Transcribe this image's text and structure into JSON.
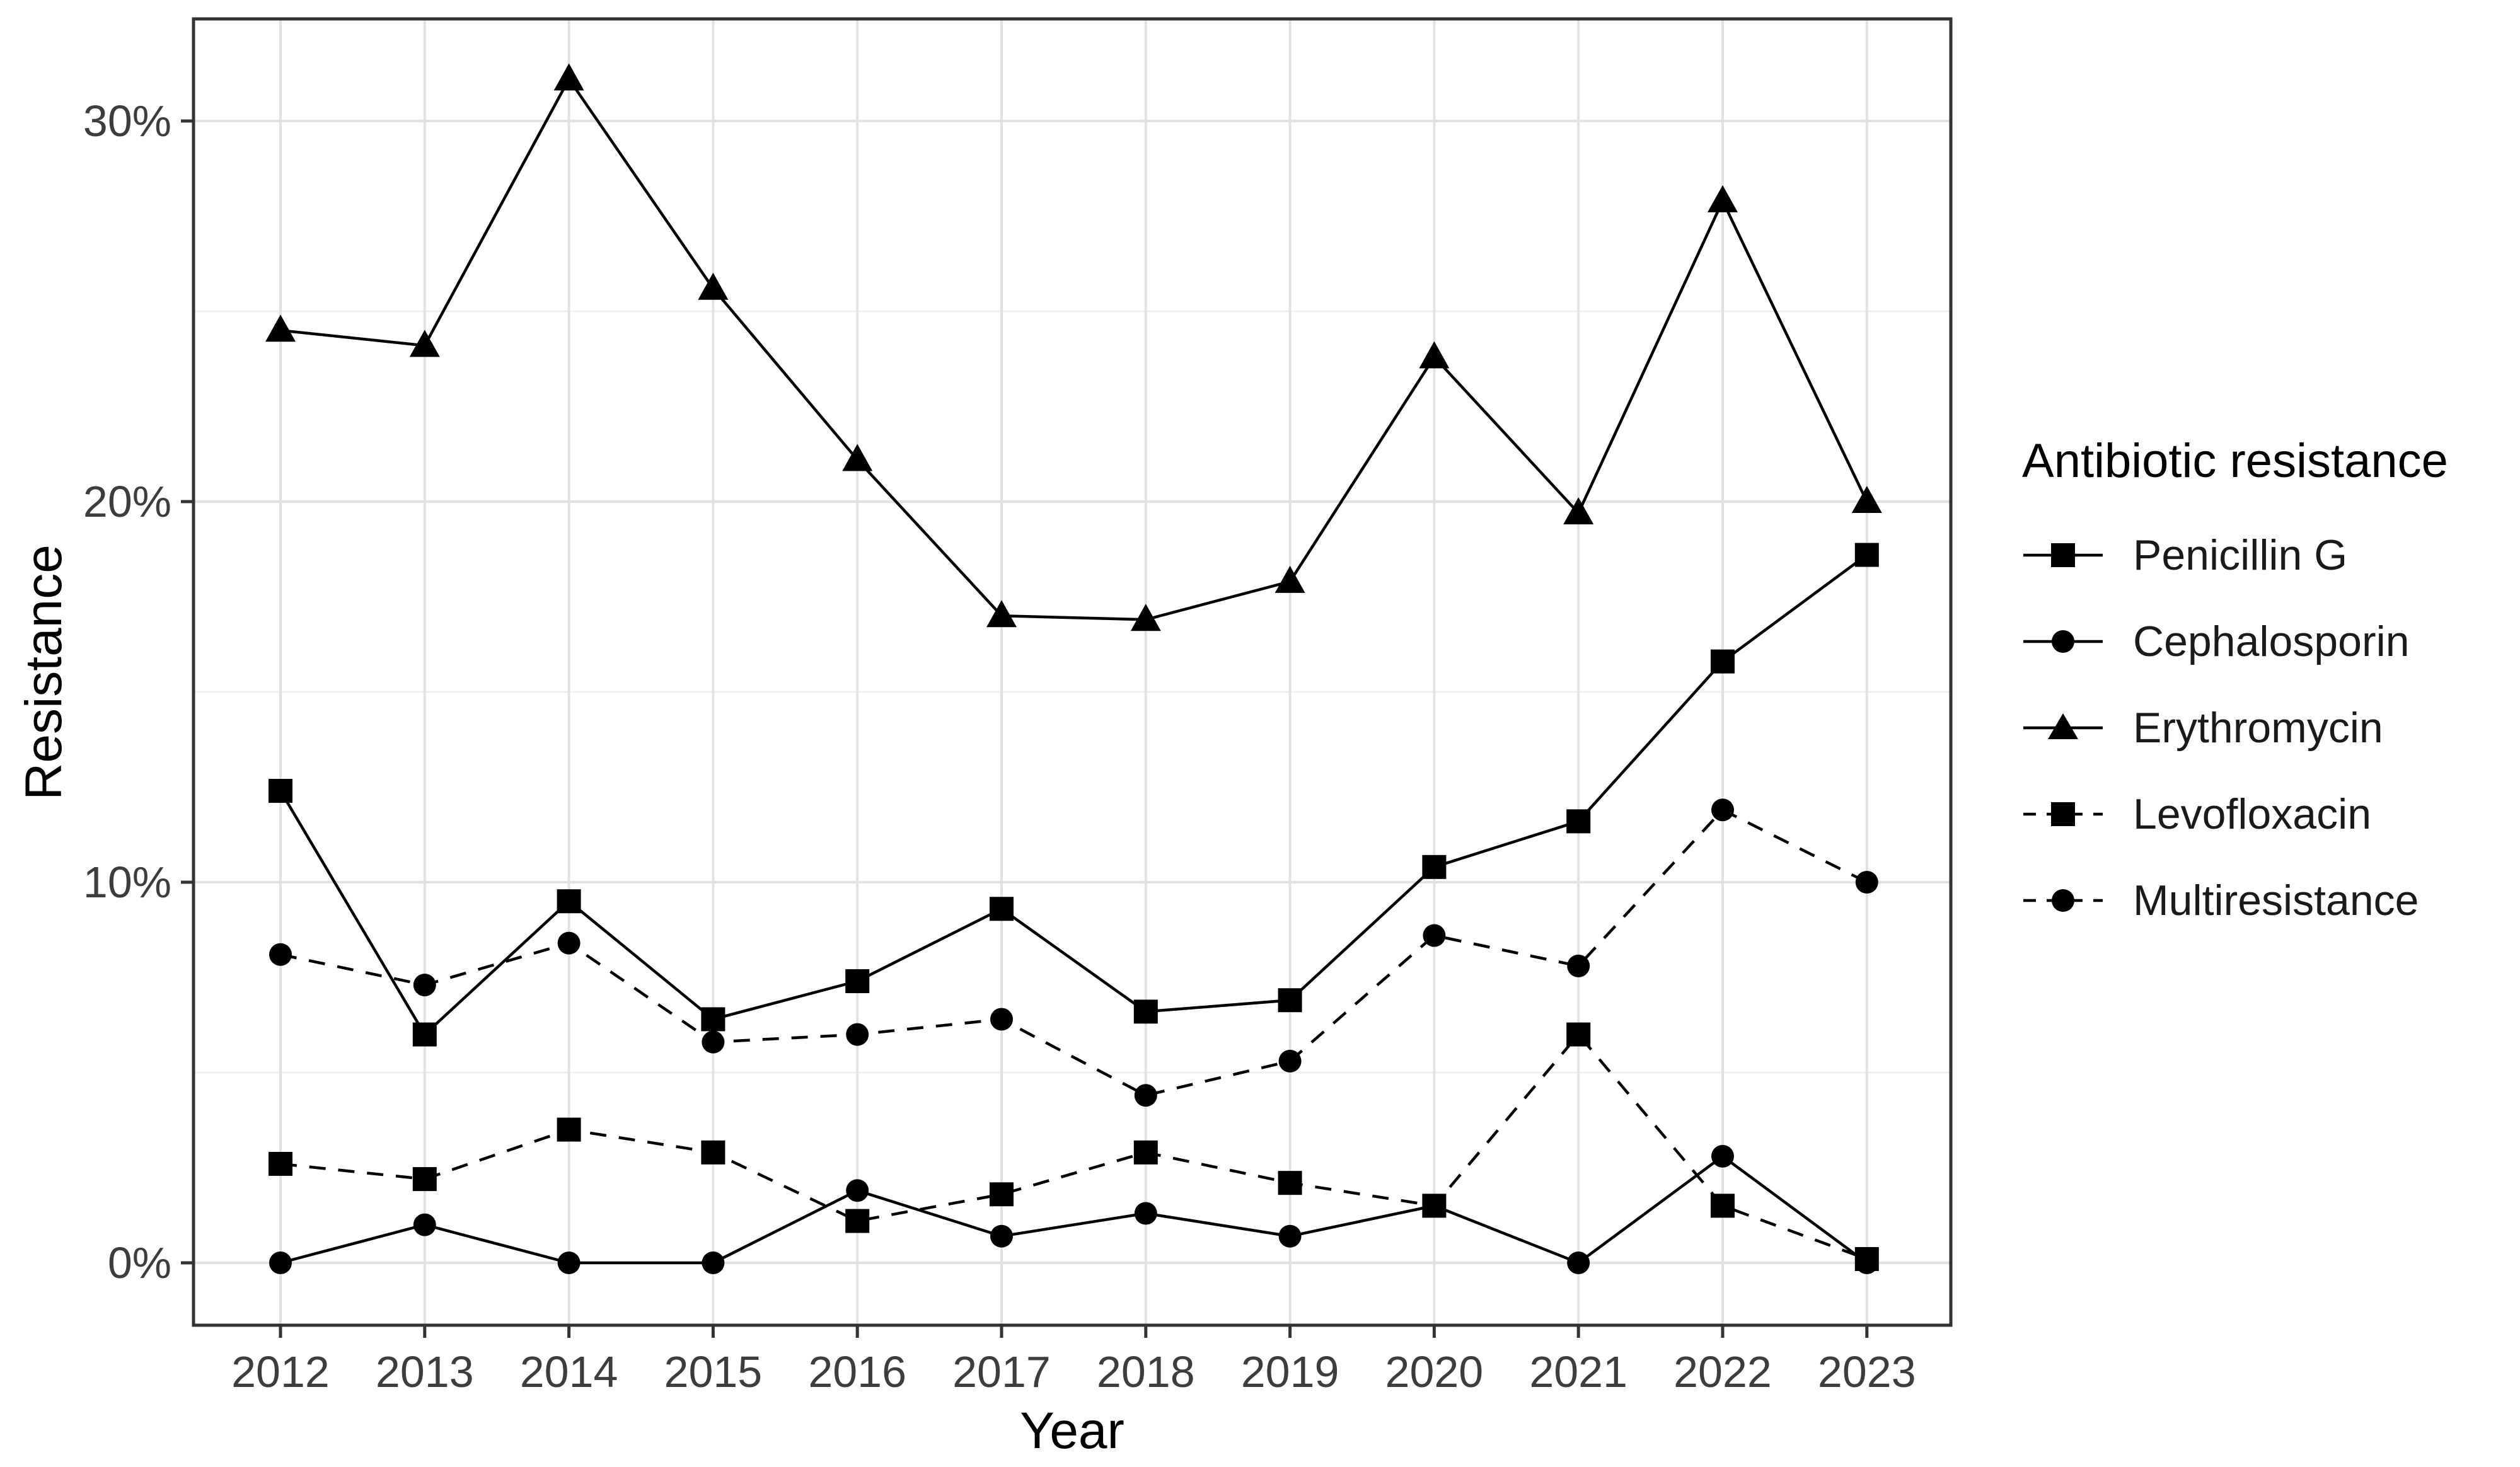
{
  "chart_data": {
    "type": "line",
    "title": "",
    "xlabel": "Year",
    "ylabel": "Resistance",
    "legend_title": "Antibiotic resistance",
    "legend_position": "right",
    "grid": "on",
    "x": [
      2012,
      2013,
      2014,
      2015,
      2016,
      2017,
      2018,
      2019,
      2020,
      2021,
      2022,
      2023
    ],
    "y_ticks": [
      {
        "value": 0,
        "label": "0%"
      },
      {
        "value": 10,
        "label": "10%"
      },
      {
        "value": 20,
        "label": "20%"
      },
      {
        "value": 30,
        "label": "30%"
      }
    ],
    "y_minor_ticks": [
      5,
      15,
      25
    ],
    "ylim": [
      -1.6,
      32.8
    ],
    "series": [
      {
        "name": "Penicillin G",
        "marker": "square",
        "line": "solid",
        "values": [
          12.4,
          6.0,
          9.5,
          6.4,
          7.4,
          9.3,
          6.6,
          6.9,
          10.4,
          11.6,
          15.8,
          18.6
        ]
      },
      {
        "name": "Cephalosporin",
        "marker": "circle",
        "line": "solid",
        "values": [
          0.0,
          1.0,
          0.0,
          0.0,
          1.9,
          0.7,
          1.3,
          0.7,
          1.5,
          0.0,
          2.8,
          0.0
        ]
      },
      {
        "name": "Erythromycin",
        "marker": "triangle",
        "line": "solid",
        "values": [
          24.5,
          24.1,
          31.1,
          25.6,
          21.1,
          17.0,
          16.9,
          17.9,
          23.8,
          19.7,
          27.9,
          20.0
        ]
      },
      {
        "name": "Levofloxacin",
        "marker": "square",
        "line": "dashed",
        "values": [
          2.6,
          2.2,
          3.5,
          2.9,
          1.1,
          1.8,
          2.9,
          2.1,
          1.5,
          6.0,
          1.5,
          0.1
        ]
      },
      {
        "name": "Multiresistance",
        "marker": "circle",
        "line": "dashed",
        "values": [
          8.1,
          7.3,
          8.4,
          5.8,
          6.0,
          6.4,
          4.4,
          5.3,
          8.6,
          7.8,
          11.9,
          10.0
        ]
      }
    ],
    "colors": {
      "series": "#000000",
      "grid_major": "#e2e2e2",
      "grid_minor": "#efefef",
      "panel_border": "#333333",
      "tick": "#333333",
      "axis_text": "#3d3d3d",
      "background": "#ffffff"
    }
  }
}
